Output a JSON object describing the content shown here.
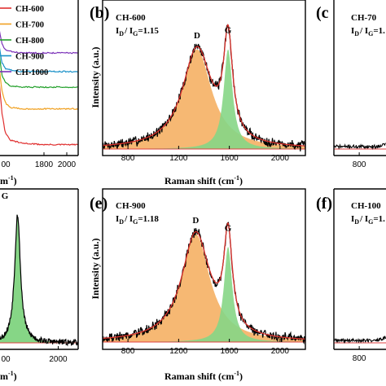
{
  "chart_data": [
    {
      "panel": "a",
      "type": "line",
      "legend": [
        "CH-600",
        "CH-700",
        "CH-800",
        "CH-900",
        "CH-1000"
      ],
      "colors": [
        "#e03030",
        "#f0a020",
        "#22a02a",
        "#1890c8",
        "#7a30b8"
      ],
      "x_tick_labels": [
        "1800",
        "2000"
      ],
      "x_tick_partial": "00",
      "xlabel_fragment": "m",
      "xlim": [
        1400,
        2100
      ],
      "series": [
        {
          "name": "CH-600",
          "x": [
            1400,
            1430,
            1460,
            1500,
            1600,
            1800,
            2000,
            2100
          ],
          "values": [
            0.55,
            0.28,
            0.15,
            0.1,
            0.08,
            0.07,
            0.07,
            0.07
          ]
        },
        {
          "name": "CH-700",
          "x": [
            1400,
            1430,
            1460,
            1500,
            1600,
            1800,
            2000,
            2100
          ],
          "values": [
            0.62,
            0.42,
            0.34,
            0.31,
            0.3,
            0.3,
            0.3,
            0.3
          ]
        },
        {
          "name": "CH-800",
          "x": [
            1400,
            1430,
            1460,
            1500,
            1600,
            1800,
            2000,
            2100
          ],
          "values": [
            0.7,
            0.52,
            0.47,
            0.45,
            0.44,
            0.44,
            0.44,
            0.44
          ]
        },
        {
          "name": "CH-900",
          "x": [
            1400,
            1430,
            1460,
            1500,
            1600,
            1800,
            2000,
            2100
          ],
          "values": [
            0.74,
            0.6,
            0.56,
            0.55,
            0.54,
            0.54,
            0.54,
            0.54
          ]
        },
        {
          "name": "CH-1000",
          "x": [
            1400,
            1430,
            1460,
            1500,
            1600,
            1800,
            2000,
            2100
          ],
          "values": [
            0.84,
            0.72,
            0.68,
            0.67,
            0.66,
            0.66,
            0.66,
            0.66
          ]
        }
      ]
    },
    {
      "panel": "b",
      "type": "area",
      "sample": "CH-600",
      "ratio_label": "I",
      "ratio_D": "D",
      "ratio_slash": "/ I",
      "ratio_G": "G",
      "ratio_value": "=1.15",
      "peak_labels": {
        "D": "D",
        "G": "G"
      },
      "peaks": {
        "D": {
          "center": 1345,
          "fwhm": 280,
          "height": 0.76
        },
        "G": {
          "center": 1590,
          "fwhm": 85,
          "height": 0.76
        }
      },
      "xlabel": "Raman shift (cm",
      "xlabel_sup": "-1",
      "xlabel_close": ")",
      "ylabel": "Intensity (a.u.)",
      "x_ticks": [
        800,
        1200,
        1600,
        2000
      ],
      "xlim": [
        600,
        2200
      ],
      "noise_seed": 7
    },
    {
      "panel": "c",
      "type": "line",
      "sample_fragment": "CH-70",
      "ratio_fragment": "=1.",
      "x_ticks": [
        800
      ],
      "xlim": [
        600,
        2200
      ]
    },
    {
      "panel": "d",
      "type": "area",
      "peak_label_fragment": "G",
      "x_tick_labels": [
        "2000"
      ],
      "x_tick_partial": "00",
      "xlabel_fragment": "m",
      "xlim": [
        1400,
        2200
      ]
    },
    {
      "panel": "e",
      "type": "area",
      "sample": "CH-900",
      "ratio_label": "I",
      "ratio_D": "D",
      "ratio_slash": "/ I",
      "ratio_G": "G",
      "ratio_value": "=1.18",
      "peak_labels": {
        "D": "D",
        "G": "G"
      },
      "peaks": {
        "D": {
          "center": 1335,
          "fwhm": 270,
          "height": 0.84
        },
        "G": {
          "center": 1590,
          "fwhm": 80,
          "height": 0.74
        }
      },
      "xlabel": "Raman shift (cm",
      "xlabel_sup": "-1",
      "xlabel_close": ")",
      "ylabel": "Intensity (a.u.)",
      "x_ticks": [
        800,
        1200,
        1600,
        2000
      ],
      "xlim": [
        600,
        2200
      ],
      "noise_seed": 19
    },
    {
      "panel": "f",
      "type": "line",
      "sample_fragment": "CH-100",
      "ratio_fragment": "=1.",
      "x_ticks": [
        800
      ],
      "xlim": [
        600,
        2200
      ]
    }
  ],
  "panel_letters": {
    "b": "(b)",
    "c": "(c",
    "e": "(e)",
    "f": "(f)"
  },
  "axis_titles": {
    "ylabel": "Intensity (a.u.)"
  },
  "colors": {
    "D_band": "#f6b873",
    "G_band": "#86d686",
    "fit": "#d9302a",
    "raw": "#000000",
    "baseline": "#e04040"
  }
}
